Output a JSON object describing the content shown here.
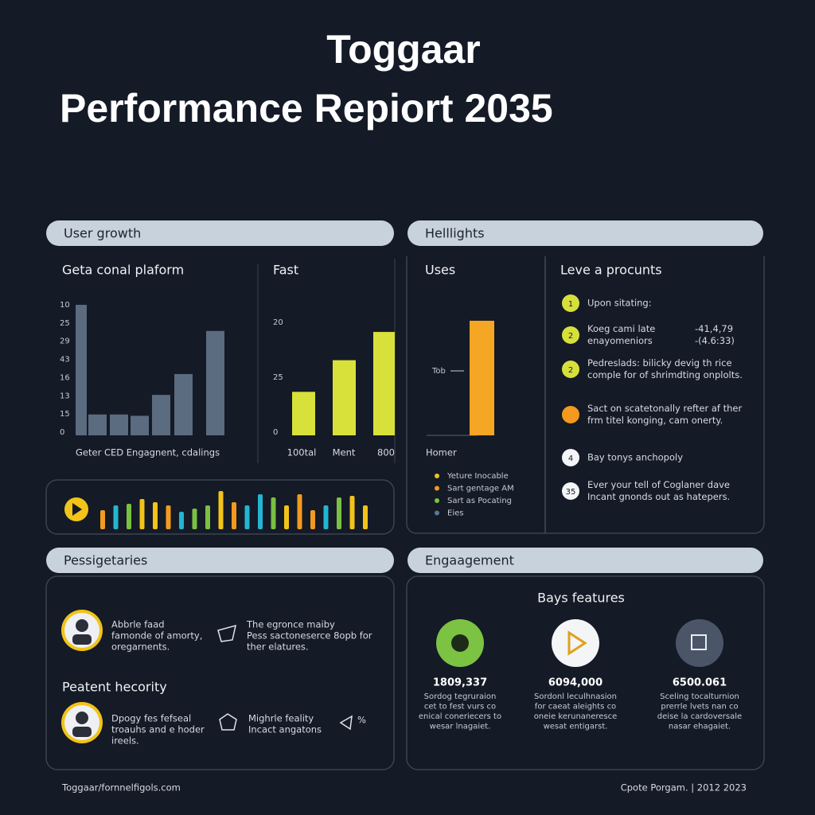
{
  "header": {
    "line1": "Toggaar",
    "line2": "Performance Repiort 2035"
  },
  "user_growth": {
    "title": "User growth",
    "chart1": {
      "type": "bar",
      "title": "Geta conal plaform",
      "axis_labels": [
        10,
        25,
        29,
        43,
        16,
        13,
        15,
        0
      ],
      "ylim": [
        0,
        10
      ],
      "values": [
        10,
        1.6,
        1.6,
        1.5,
        3.1,
        4.7,
        8.0
      ],
      "color": "#5b6b80",
      "caption": "Geter CED Engagnent, cdalings"
    },
    "chart2": {
      "type": "bar",
      "title": "Fast",
      "axis_labels": [
        20,
        25,
        0
      ],
      "ylim": [
        0,
        20
      ],
      "values": [
        7.7,
        13.3,
        18.3
      ],
      "categories": [
        "100tal",
        "Ment",
        "800"
      ],
      "color": "#d8e13a"
    }
  },
  "highlights": {
    "title": "Helllights",
    "uses": {
      "title": "Uses",
      "marker": "Tob",
      "legend_title": "Homer",
      "legend": [
        {
          "name": "Yeture Inocable",
          "color": "#e8c326"
        },
        {
          "name": "Sart gentage AM",
          "color": "#f39a1e"
        },
        {
          "name": "Sart as Pocating",
          "color": "#7bc043"
        },
        {
          "name": "Eies",
          "color": "#5a7897"
        }
      ]
    },
    "list": {
      "title": "Leve a procunts",
      "items": [
        {
          "badge": "1",
          "lines": [
            "Upon sitating:"
          ]
        },
        {
          "badge": "2",
          "lines": [
            "Koeg cami late",
            "enayomeniors"
          ],
          "figures": [
            "-41,4,79",
            "-(4.6:33)"
          ]
        },
        {
          "badge": "2",
          "lines": [
            "Pedreslads: bilicky devig th rice",
            "comple for of shrimdting onplolts."
          ]
        },
        {
          "badge": "",
          "lines": [
            "Sact on scatetonally refter af ther",
            "frm titel konging, cam onerty."
          ]
        },
        {
          "badge": "4",
          "lines": [
            "Bay tonys anchopoly"
          ]
        },
        {
          "badge": "35",
          "lines": [
            "Ever your tell of Coglaner dave",
            "Incant gnonds out as hatepers."
          ]
        }
      ]
    }
  },
  "passengers": {
    "title": "Pessigetaries",
    "item1": [
      "Abbrle faad",
      "famonde of amorty,",
      "oregarnents."
    ],
    "item2": [
      "The egronce maiby",
      "Pess sactoneserce 8opb for",
      "ther elatures."
    ],
    "subtitle": "Peatent hecority",
    "item3": [
      "Dpogy fes fefseal",
      "troauhs and e hoder",
      "ireels."
    ],
    "item4": [
      "Mighrle feality",
      "Incact angatons"
    ],
    "tag": "%"
  },
  "engagement": {
    "title": "Engaagement",
    "subtitle": "Bays features",
    "stats": [
      {
        "figure": "1809,337",
        "lines": [
          "Sordog tegruraion",
          "cet to fest vurs co",
          "enical coneriecers to",
          "wesar lnagaiet."
        ]
      },
      {
        "figure": "6094,000",
        "lines": [
          "Sordonl leculhnasion",
          "for caeat aleights co",
          "oneie kerunaneresce",
          "wesat entigarst."
        ]
      },
      {
        "figure": "6500.061",
        "lines": [
          "Sceling tocalturnion",
          "prerrle lvets nan co",
          "deise la cardoversale",
          "nasar ehagaiet."
        ]
      }
    ]
  },
  "footer": {
    "left": "Toggaar/fornnelfigols.com",
    "right": "Cpote Porgam. | 2012 2023"
  }
}
